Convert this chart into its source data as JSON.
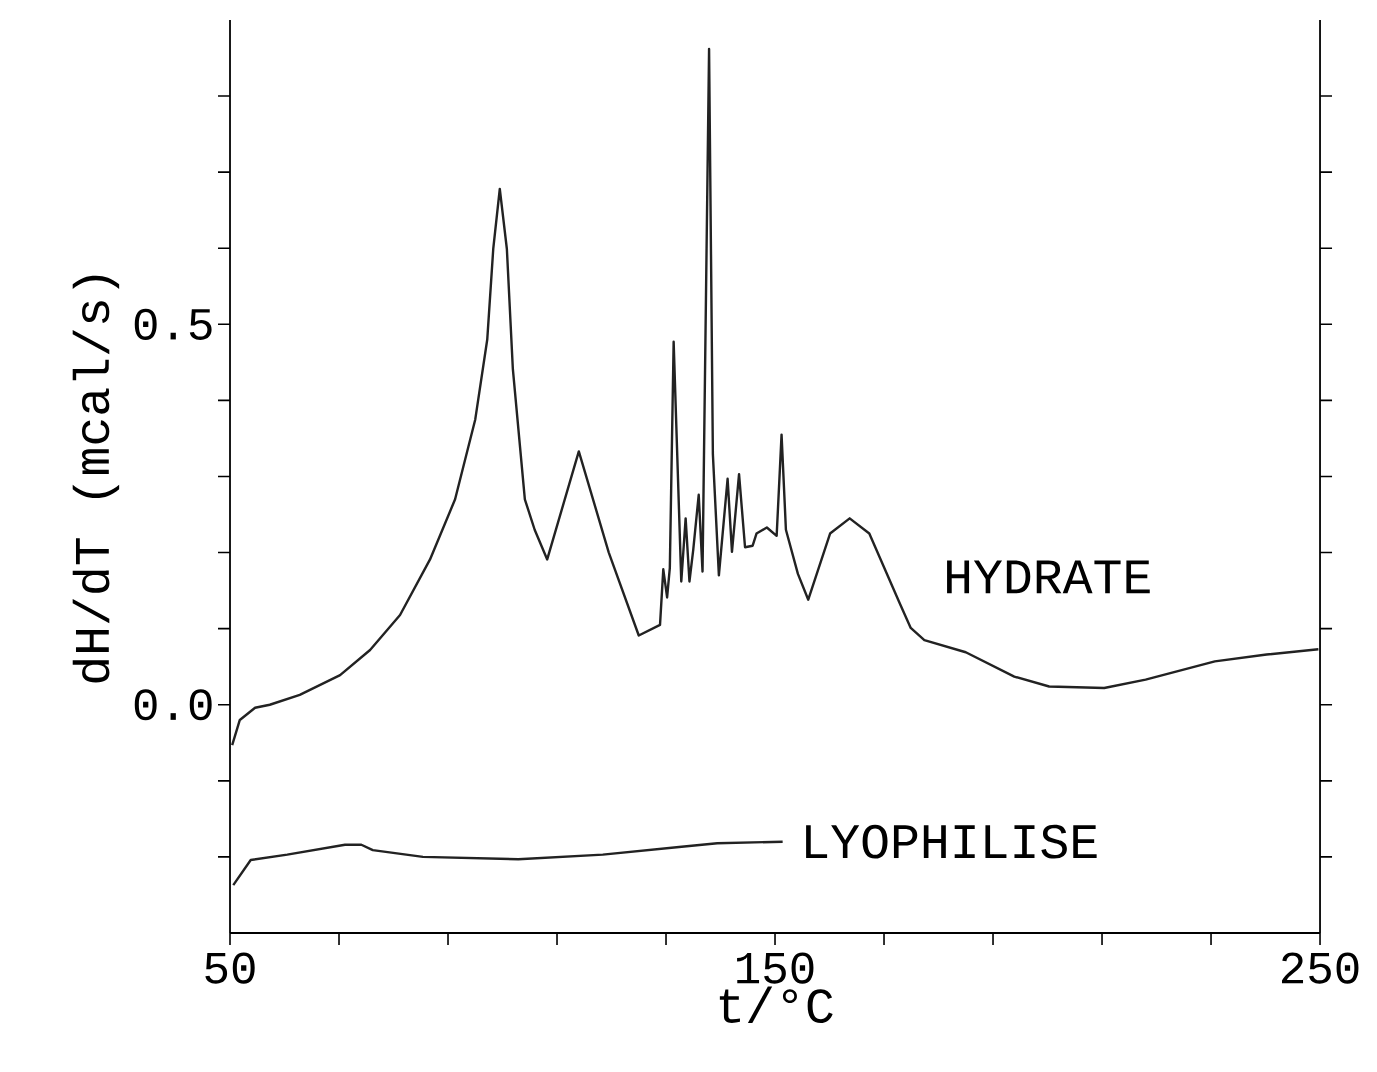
{
  "chart_data": {
    "type": "line",
    "xlabel": "t/°C",
    "ylabel": "dH/dT  (mcal/s)",
    "xlim": [
      50,
      250
    ],
    "ylim": [
      -0.3,
      0.9
    ],
    "xticks": [
      50,
      {
        "value": 70,
        "label": null
      },
      {
        "value": 90,
        "label": null
      },
      {
        "value": 110,
        "label": null
      },
      {
        "value": 130,
        "label": null
      },
      150,
      {
        "value": 170,
        "label": null
      },
      {
        "value": 190,
        "label": null
      },
      {
        "value": 210,
        "label": null
      },
      {
        "value": 230,
        "label": null
      },
      250
    ],
    "yticks": [
      {
        "value": -0.2,
        "label": null
      },
      {
        "value": -0.1,
        "label": null
      },
      {
        "value": 0,
        "label": "0.0"
      },
      {
        "value": 0.1,
        "label": null
      },
      {
        "value": 0.2,
        "label": null
      },
      {
        "value": 0.3,
        "label": null
      },
      {
        "value": 0.4,
        "label": null
      },
      0.5,
      {
        "value": 0.6,
        "label": null
      },
      {
        "value": 0.7,
        "label": null
      },
      {
        "value": 0.8,
        "label": null
      }
    ],
    "series": [
      {
        "name": "HYDRATE",
        "color": "#222222",
        "x": [
          50.4,
          51.8,
          54.6,
          57.3,
          62.8,
          70.2,
          75.7,
          81.2,
          86.7,
          91.3,
          95.0,
          97.2,
          98.3,
          99.5,
          100.8,
          101.9,
          104.1,
          105.9,
          108.2,
          114.0,
          119.5,
          125.0,
          128.9,
          129.5,
          130.2,
          130.7,
          131.4,
          132.8,
          133.6,
          134.3,
          135.0,
          136.0,
          136.7,
          137.9,
          138.6,
          139.7,
          141.3,
          142.1,
          143.4,
          144.5,
          145.9,
          146.6,
          148.5,
          150.3,
          151.2,
          152.0,
          154.2,
          156.1,
          160.1,
          163.7,
          167.3,
          172.9,
          174.9,
          177.4,
          185.0,
          193.9,
          200.3,
          210.4,
          218.0,
          230.7,
          240.2,
          249.7
        ],
        "values": [
          -0.053,
          -0.02,
          -0.004,
          0.0,
          0.013,
          0.039,
          0.072,
          0.118,
          0.191,
          0.27,
          0.375,
          0.48,
          0.599,
          0.678,
          0.599,
          0.441,
          0.27,
          0.23,
          0.191,
          0.333,
          0.2,
          0.091,
          0.105,
          0.178,
          0.141,
          0.18,
          0.477,
          0.162,
          0.245,
          0.162,
          0.204,
          0.276,
          0.175,
          0.862,
          0.329,
          0.17,
          0.297,
          0.201,
          0.303,
          0.207,
          0.209,
          0.225,
          0.233,
          0.222,
          0.355,
          0.23,
          0.172,
          0.138,
          0.225,
          0.245,
          0.225,
          0.133,
          0.101,
          0.085,
          0.069,
          0.037,
          0.024,
          0.022,
          0.033,
          0.057,
          0.066,
          0.073
        ]
      },
      {
        "name": "LYOPHILISE",
        "color": "#222222",
        "x": [
          50.6,
          53.8,
          60.5,
          71.1,
          74.1,
          76.2,
          85.4,
          102.9,
          118.4,
          132.4,
          139.4,
          151.4
        ],
        "values": [
          -0.237,
          -0.204,
          -0.197,
          -0.184,
          -0.184,
          -0.191,
          -0.2,
          -0.203,
          -0.197,
          -0.187,
          -0.182,
          -0.18
        ]
      }
    ]
  }
}
